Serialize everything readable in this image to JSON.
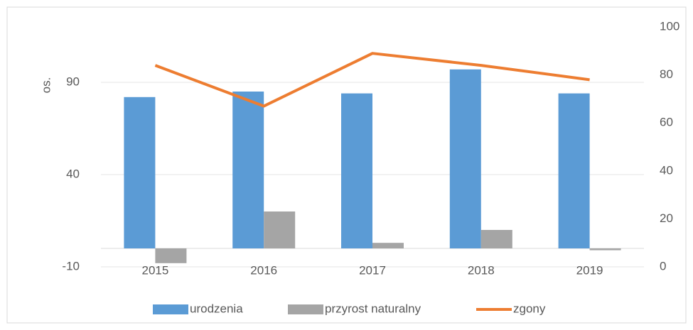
{
  "chart_data": {
    "type": "bar_line",
    "y_label": "os.",
    "categories": [
      "2015",
      "2016",
      "2017",
      "2018",
      "2019"
    ],
    "series": [
      {
        "name": "urodzenia",
        "color": "#5b9bd5",
        "type": "bar",
        "values": [
          82,
          85,
          84,
          97,
          84
        ]
      },
      {
        "name": "przyrost naturalny",
        "color": "#a5a5a5",
        "type": "bar",
        "values": [
          -8,
          20,
          3,
          10,
          -1
        ]
      },
      {
        "name": "zgony",
        "color": "#ed7d31",
        "type": "line",
        "axis": "y2",
        "values": [
          84,
          67,
          89,
          84,
          78
        ]
      }
    ],
    "ylim": [
      -10,
      120
    ],
    "yticks": [
      -10,
      40,
      90
    ],
    "y2lim": [
      0,
      100
    ],
    "y2ticks": [
      0,
      20,
      40,
      60,
      80,
      100
    ],
    "grid": true,
    "legend": "bottom"
  }
}
